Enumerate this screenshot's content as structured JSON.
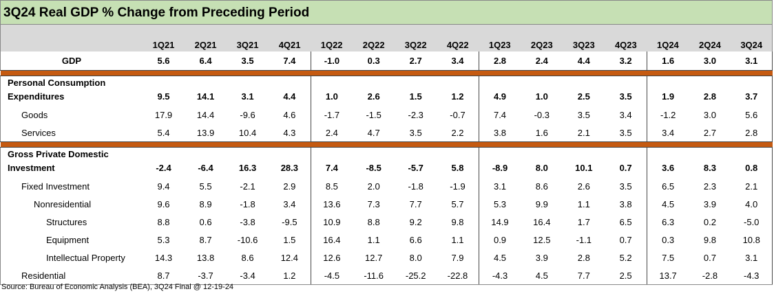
{
  "title": "3Q24 Real GDP % Change from Preceding Period",
  "quarters": [
    "1Q21",
    "2Q21",
    "3Q21",
    "4Q21",
    "1Q22",
    "2Q22",
    "3Q22",
    "4Q22",
    "1Q23",
    "2Q23",
    "3Q23",
    "4Q23",
    "1Q24",
    "2Q24",
    "3Q24"
  ],
  "gdp": {
    "label": "GDP",
    "values": [
      "5.6",
      "6.4",
      "3.5",
      "7.4",
      "-1.0",
      "0.3",
      "2.7",
      "3.4",
      "2.8",
      "2.4",
      "4.4",
      "3.2",
      "1.6",
      "3.0",
      "3.1"
    ]
  },
  "pce": {
    "label_line1": "Personal Consumption",
    "label_line2": "Expenditures",
    "values": [
      "9.5",
      "14.1",
      "3.1",
      "4.4",
      "1.0",
      "2.6",
      "1.5",
      "1.2",
      "4.9",
      "1.0",
      "2.5",
      "3.5",
      "1.9",
      "2.8",
      "3.7"
    ]
  },
  "goods": {
    "label": "Goods",
    "values": [
      "17.9",
      "14.4",
      "-9.6",
      "4.6",
      "-1.7",
      "-1.5",
      "-2.3",
      "-0.7",
      "7.4",
      "-0.3",
      "3.5",
      "3.4",
      "-1.2",
      "3.0",
      "5.6"
    ]
  },
  "services": {
    "label": "Services",
    "values": [
      "5.4",
      "13.9",
      "10.4",
      "4.3",
      "2.4",
      "4.7",
      "3.5",
      "2.2",
      "3.8",
      "1.6",
      "2.1",
      "3.5",
      "3.4",
      "2.7",
      "2.8"
    ]
  },
  "gpdi": {
    "label_line1": "Gross Private Domestic",
    "label_line2": "Investment",
    "values": [
      "-2.4",
      "-6.4",
      "16.3",
      "28.3",
      "7.4",
      "-8.5",
      "-5.7",
      "5.8",
      "-8.9",
      "8.0",
      "10.1",
      "0.7",
      "3.6",
      "8.3",
      "0.8"
    ]
  },
  "fixed": {
    "label": "Fixed Investment",
    "values": [
      "9.4",
      "5.5",
      "-2.1",
      "2.9",
      "8.5",
      "2.0",
      "-1.8",
      "-1.9",
      "3.1",
      "8.6",
      "2.6",
      "3.5",
      "6.5",
      "2.3",
      "2.1"
    ]
  },
  "nonres": {
    "label": "Nonresidential",
    "values": [
      "9.6",
      "8.9",
      "-1.8",
      "3.4",
      "13.6",
      "7.3",
      "7.7",
      "5.7",
      "5.3",
      "9.9",
      "1.1",
      "3.8",
      "4.5",
      "3.9",
      "4.0"
    ]
  },
  "structures": {
    "label": "Structures",
    "values": [
      "8.8",
      "0.6",
      "-3.8",
      "-9.5",
      "10.9",
      "8.8",
      "9.2",
      "9.8",
      "14.9",
      "16.4",
      "1.7",
      "6.5",
      "6.3",
      "0.2",
      "-5.0"
    ]
  },
  "equipment": {
    "label": "Equipment",
    "values": [
      "5.3",
      "8.7",
      "-10.6",
      "1.5",
      "16.4",
      "1.1",
      "6.6",
      "1.1",
      "0.9",
      "12.5",
      "-1.1",
      "0.7",
      "0.3",
      "9.8",
      "10.8"
    ]
  },
  "ip": {
    "label": "Intellectual Property",
    "values": [
      "14.3",
      "13.8",
      "8.6",
      "12.4",
      "12.6",
      "12.7",
      "8.0",
      "7.9",
      "4.5",
      "3.9",
      "2.8",
      "5.2",
      "7.5",
      "0.7",
      "3.1"
    ]
  },
  "residential": {
    "label": "Residential",
    "values": [
      "8.7",
      "-3.7",
      "-3.4",
      "1.2",
      "-4.5",
      "-11.6",
      "-25.2",
      "-22.8",
      "-4.3",
      "4.5",
      "7.7",
      "2.5",
      "13.7",
      "-2.8",
      "-4.3"
    ]
  },
  "source": "Source: Bureau of Economic Analysis (BEA), 3Q24 Final @ 12-19-24"
}
